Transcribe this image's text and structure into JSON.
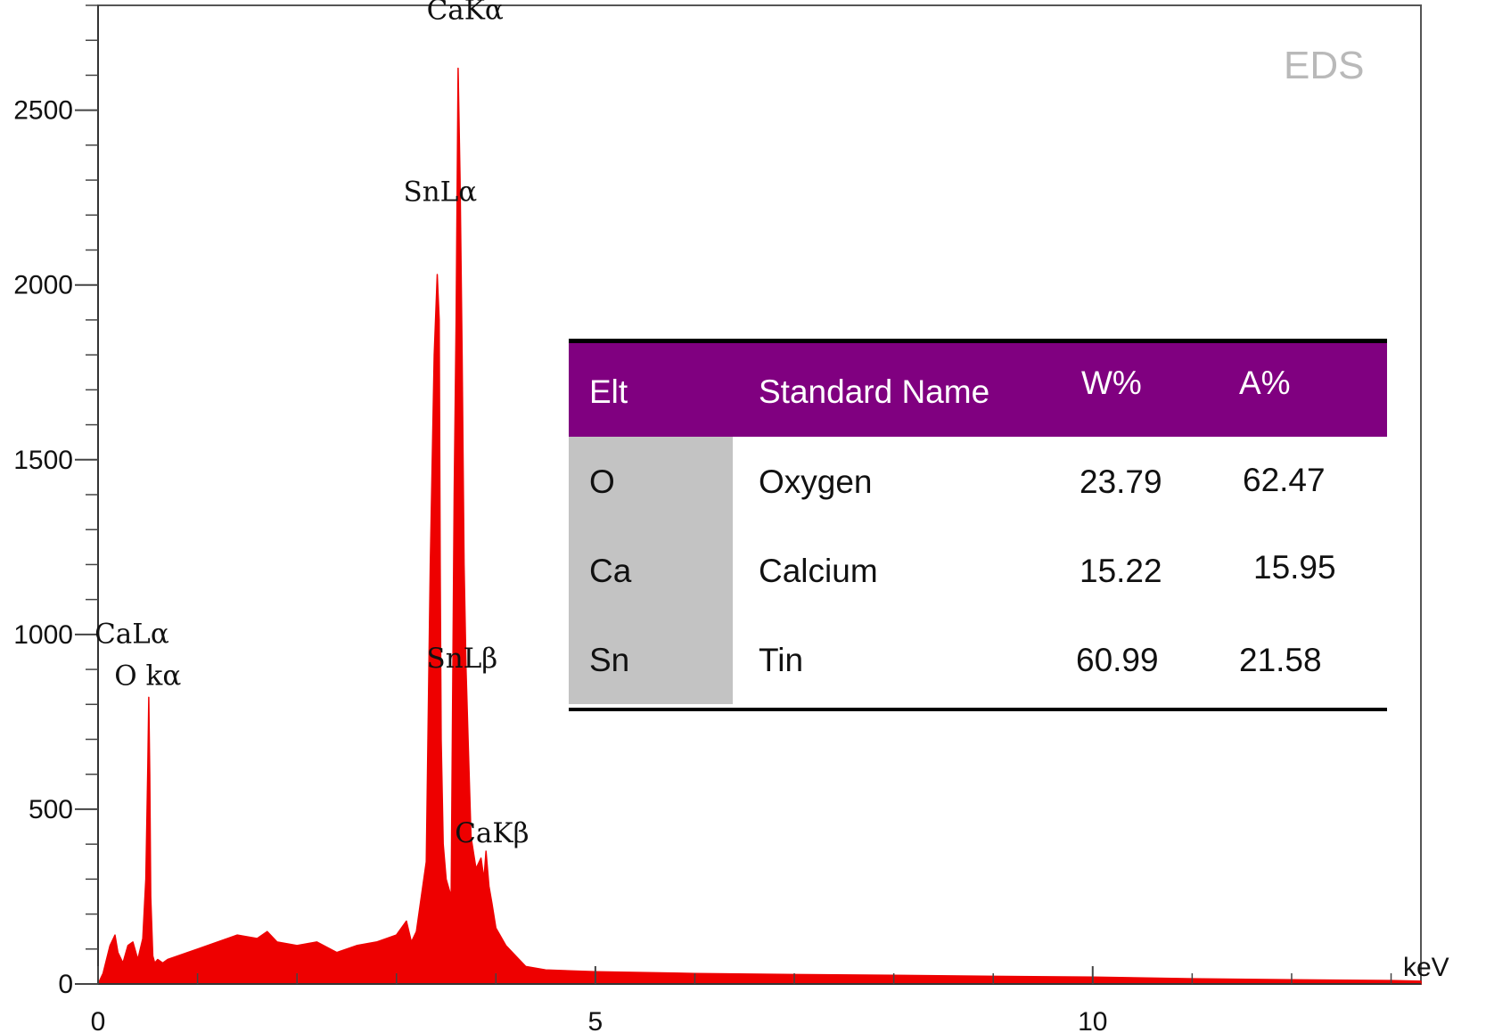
{
  "chart_data": {
    "type": "area",
    "title": "",
    "xlabel": "",
    "ylabel": "",
    "x_unit": "keV",
    "xlim": [
      0,
      13.3
    ],
    "ylim": [
      0,
      2800
    ],
    "x_ticks": [
      0,
      5,
      10
    ],
    "y_ticks": [
      0,
      500,
      1000,
      1500,
      2000,
      2500
    ],
    "x_minor_step": 1,
    "y_minor_step": 100,
    "grid": false,
    "legend": "none",
    "fill_color": "#ee0000",
    "watermark": "EDS",
    "series": [
      {
        "x": [
          0.0,
          0.05,
          0.12,
          0.17,
          0.2,
          0.25,
          0.3,
          0.35,
          0.4,
          0.45,
          0.48,
          0.5,
          0.51,
          0.52,
          0.53,
          0.55,
          0.57,
          0.6,
          0.65,
          0.7,
          0.8,
          0.9,
          1.0,
          1.2,
          1.4,
          1.6,
          1.7,
          1.8,
          2.0,
          2.2,
          2.4,
          2.6,
          2.8,
          3.0,
          3.1,
          3.15,
          3.2,
          3.3,
          3.34,
          3.38,
          3.41,
          3.43,
          3.44,
          3.45,
          3.47,
          3.5,
          3.55,
          3.58,
          3.6,
          3.62,
          3.64,
          3.66,
          3.68,
          3.7,
          3.72,
          3.75,
          3.8,
          3.85,
          3.88,
          3.9,
          3.93,
          3.96,
          4.0,
          4.1,
          4.2,
          4.3,
          4.5,
          5.0,
          6.0,
          7.0,
          8.0,
          9.0,
          10.0,
          11.0,
          12.0,
          13.0,
          13.3
        ],
        "y": [
          0,
          30,
          110,
          140,
          90,
          60,
          110,
          120,
          70,
          130,
          300,
          620,
          820,
          600,
          250,
          80,
          60,
          70,
          60,
          70,
          80,
          90,
          100,
          120,
          140,
          130,
          150,
          120,
          110,
          120,
          90,
          110,
          120,
          140,
          180,
          120,
          150,
          350,
          1200,
          1800,
          2030,
          1900,
          1200,
          700,
          400,
          300,
          250,
          1400,
          1900,
          2620,
          2300,
          1800,
          1200,
          900,
          700,
          420,
          330,
          360,
          300,
          380,
          280,
          230,
          160,
          110,
          80,
          50,
          40,
          35,
          30,
          27,
          25,
          22,
          20,
          15,
          12,
          10,
          8
        ]
      }
    ],
    "peak_labels": [
      {
        "text": "CaKα",
        "x": 3.69,
        "y": 2760
      },
      {
        "text": "SnLα",
        "x": 3.44,
        "y": 2240
      },
      {
        "text": "CaLα",
        "x": 0.34,
        "y": 975
      },
      {
        "text": "O kα",
        "x": 0.5,
        "y": 855
      },
      {
        "text": "SnLβ",
        "x": 3.66,
        "y": 905
      },
      {
        "text": "CaKβ",
        "x": 3.96,
        "y": 405
      }
    ]
  },
  "table": {
    "headers": [
      "Elt",
      "Standard Name",
      "W%",
      "A%"
    ],
    "rows": [
      [
        "O",
        "Oxygen",
        "23.79",
        "62.47"
      ],
      [
        "Ca",
        "Calcium",
        "15.22",
        "15.95"
      ],
      [
        "Sn",
        "Tin",
        "60.99",
        "21.58"
      ]
    ]
  }
}
